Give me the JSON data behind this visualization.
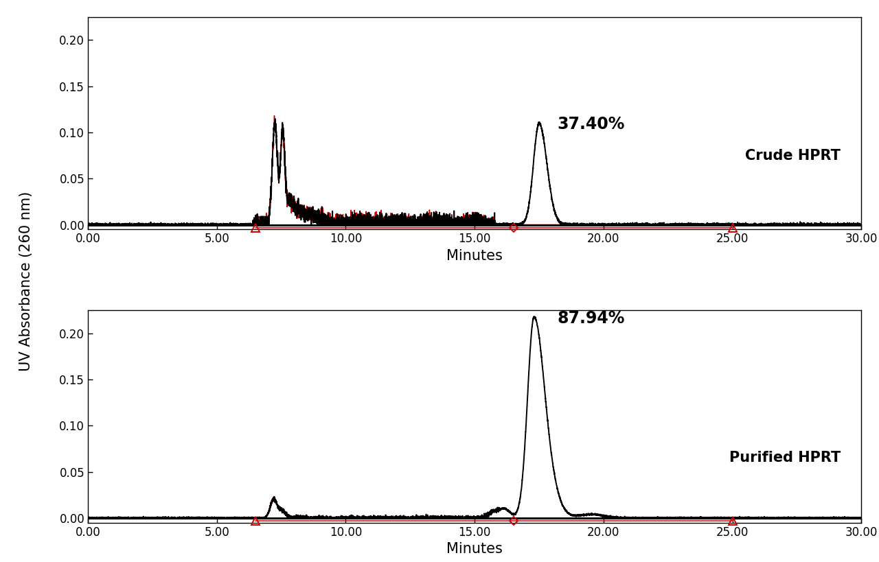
{
  "ylabel": "UV Absorbance (260 nm)",
  "xlabel": "Minutes",
  "xlim": [
    0.0,
    30.0
  ],
  "ylim_crude": [
    -0.005,
    0.225
  ],
  "ylim_purified": [
    -0.005,
    0.225
  ],
  "yticks": [
    0.0,
    0.05,
    0.1,
    0.15,
    0.2
  ],
  "xticks": [
    0.0,
    5.0,
    10.0,
    15.0,
    20.0,
    25.0,
    30.0
  ],
  "crude_label": "Crude HPRT",
  "purified_label": "Purified HPRT",
  "crude_pct": "37.40%",
  "purified_pct": "87.94%",
  "black_line_color": "#000000",
  "red_line_color": "#cc0000",
  "bg_color": "#ffffff",
  "fontsize_label": 15,
  "fontsize_pct": 17,
  "fontsize_sample": 15,
  "fontsize_tick": 12
}
